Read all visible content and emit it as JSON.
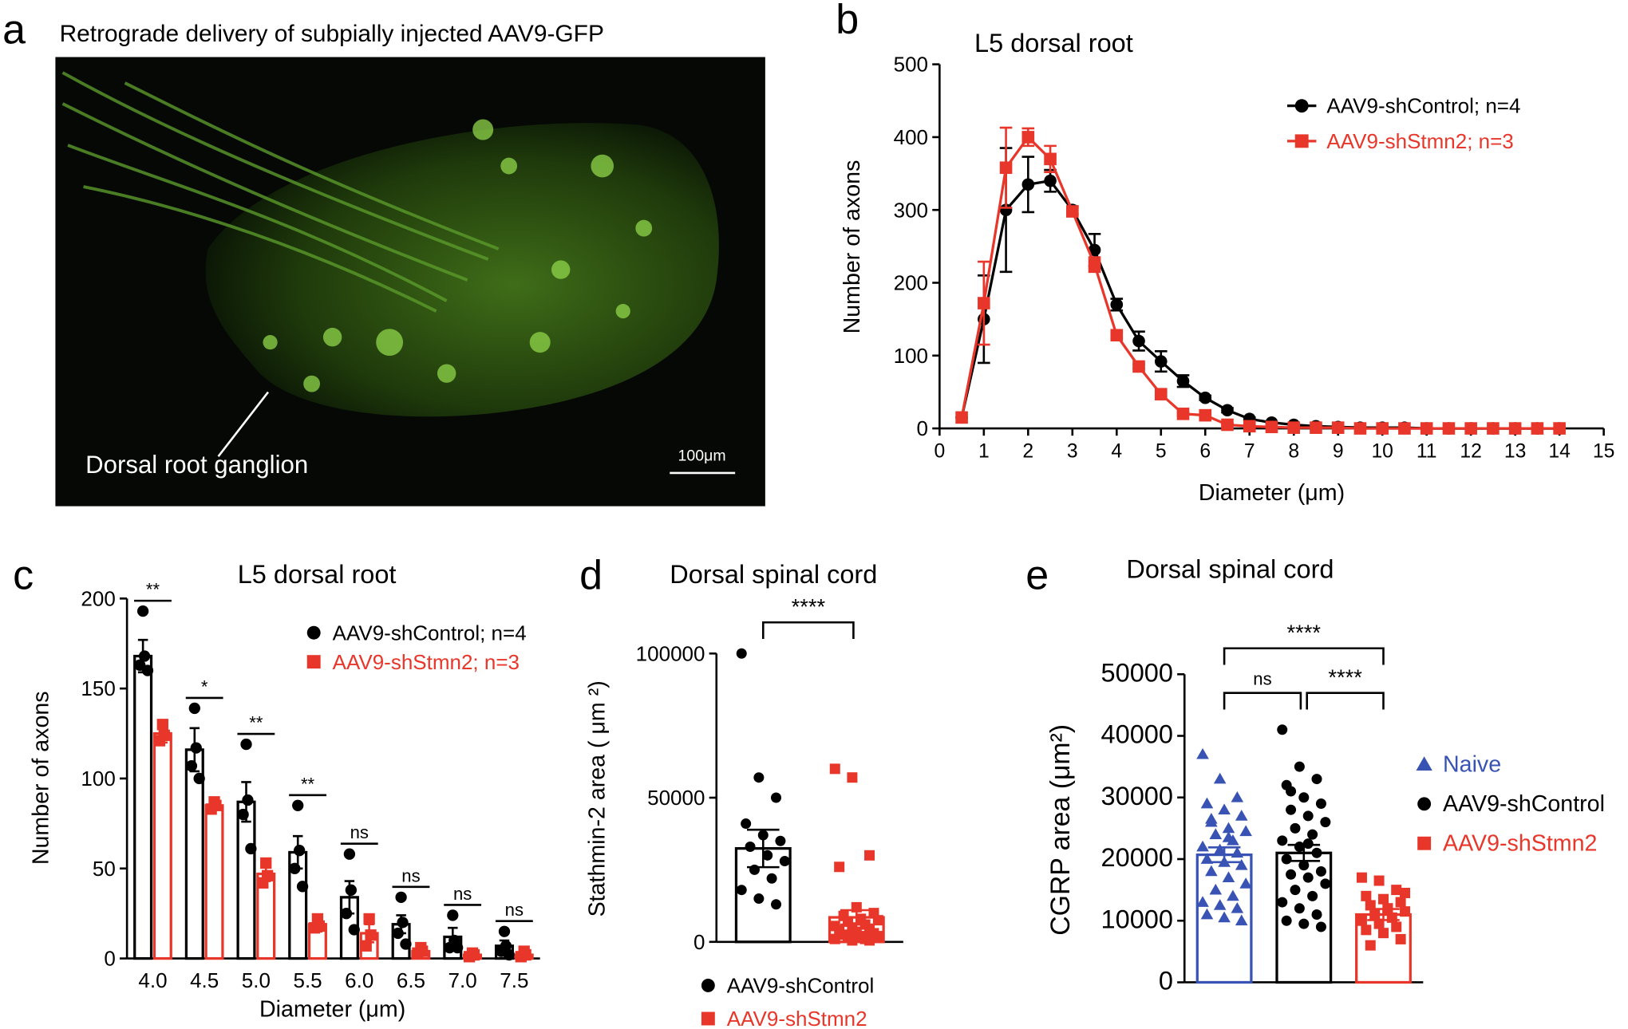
{
  "panel_a": {
    "label": "a",
    "title": "Retrograde delivery of subpially injected AAV9-GFP",
    "annotation": "Dorsal root ganglion",
    "scale_bar": "100μm"
  },
  "chart_data": [
    {
      "type": "line",
      "panel_label": "b",
      "title": "L5 dorsal root",
      "x_label": "Diameter (μm)",
      "y_label": "Number of axons",
      "x": [
        0.5,
        1,
        1.5,
        2,
        2.5,
        3,
        3.5,
        4,
        4.5,
        5,
        5.5,
        6,
        6.5,
        7,
        7.5,
        8,
        8.5,
        9,
        9.5,
        10,
        10.5,
        11,
        11.5,
        12,
        12.5,
        13,
        13.5,
        14
      ],
      "series": [
        {
          "name": "AAV9-shControl; n=4",
          "color": "#000000",
          "marker": "circle",
          "values": [
            15,
            150,
            300,
            335,
            340,
            300,
            245,
            170,
            120,
            92,
            65,
            42,
            25,
            13,
            8,
            5,
            3,
            2,
            1,
            1,
            1,
            0,
            0,
            0,
            0,
            0,
            0,
            0
          ],
          "errors": [
            0,
            60,
            85,
            38,
            15,
            5,
            22,
            8,
            13,
            14,
            8,
            3,
            3,
            2,
            1,
            1,
            1,
            0,
            0,
            0,
            0,
            0,
            0,
            0,
            0,
            0,
            0,
            0
          ]
        },
        {
          "name": "AAV9-shStmn2; n=3",
          "color": "#e8372a",
          "marker": "square",
          "values": [
            15,
            172,
            358,
            400,
            370,
            298,
            225,
            128,
            85,
            47,
            20,
            18,
            5,
            3,
            2,
            1,
            1,
            1,
            0,
            0,
            0,
            0,
            0,
            0,
            0,
            0,
            0,
            0
          ],
          "errors": [
            0,
            57,
            55,
            12,
            18,
            5,
            10,
            4,
            3,
            3,
            2,
            2,
            1,
            1,
            0,
            0,
            0,
            0,
            0,
            0,
            0,
            0,
            0,
            0,
            0,
            0,
            0,
            0
          ]
        }
      ],
      "xlim": [
        0,
        15
      ],
      "xticks": [
        0,
        1,
        2,
        3,
        4,
        5,
        6,
        7,
        8,
        9,
        10,
        11,
        12,
        13,
        14,
        15
      ],
      "ylim": [
        0,
        500
      ],
      "yticks": [
        0,
        100,
        200,
        300,
        400,
        500
      ],
      "legend": "upper right"
    },
    {
      "type": "bar",
      "panel_label": "c",
      "title": "L5 dorsal root",
      "x_label": "Diameter (μm)",
      "y_label": "Number of axons",
      "categories": [
        "4.0",
        "4.5",
        "5.0",
        "5.5",
        "6.0",
        "6.5",
        "7.0",
        "7.5"
      ],
      "series": [
        {
          "name": "AAV9-shControl; n=4",
          "color": "#000000",
          "marker": "circle",
          "values": [
            168,
            116,
            87,
            59,
            34,
            19,
            12,
            7
          ],
          "errors": [
            9,
            12,
            11,
            9,
            9,
            5,
            5,
            3
          ],
          "points": [
            [
              193,
              168,
              163,
              160
            ],
            [
              139,
              117,
              107,
              100
            ],
            [
              119,
              88,
              80,
              61
            ],
            [
              85,
              60,
              50,
              40
            ],
            [
              58,
              38,
              25,
              16
            ],
            [
              34,
              20,
              14,
              8
            ],
            [
              24,
              10,
              6,
              6
            ],
            [
              15,
              7,
              4,
              2
            ]
          ]
        },
        {
          "name": "AAV9-shStmn2; n=3",
          "color": "#e8372a",
          "marker": "square",
          "values": [
            125,
            85,
            47,
            19,
            14,
            4,
            2,
            2
          ],
          "errors": [
            5,
            2,
            4,
            4,
            5,
            1,
            1,
            1
          ],
          "points": [
            [
              130,
              124,
              121
            ],
            [
              87,
              85,
              83
            ],
            [
              53,
              46,
              42
            ],
            [
              22,
              18,
              17
            ],
            [
              22,
              13,
              7
            ],
            [
              6,
              4,
              3
            ],
            [
              3,
              2,
              1
            ],
            [
              4,
              2,
              1
            ]
          ]
        }
      ],
      "significance": [
        "**",
        "*",
        "**",
        "**",
        "ns",
        "ns",
        "ns",
        "ns"
      ],
      "ylim": [
        0,
        200
      ],
      "yticks": [
        0,
        50,
        100,
        150,
        200
      ],
      "legend": "upper right"
    },
    {
      "type": "bar",
      "panel_label": "d",
      "title": "Dorsal spinal cord",
      "y_label": "Stathmin-2 area ( μm ²)",
      "series": [
        {
          "name": "AAV9-shControl",
          "color": "#000000",
          "marker": "circle",
          "values": [
            32400
          ],
          "errors": [
            6500
          ],
          "points": [
            [
              100000,
              57000,
              50000,
              41000,
              37000,
              35000,
              33000,
              30000,
              28000,
              25000,
              22000,
              18000,
              15000,
              13000
            ]
          ]
        },
        {
          "name": "AAV9-shStmn2",
          "color": "#e8372a",
          "marker": "square",
          "values": [
            8500
          ],
          "errors": [
            2500
          ],
          "points": [
            [
              60000,
              57000,
              30000,
              26000,
              12000,
              10000,
              9000,
              8000,
              7500,
              7000,
              6000,
              5500,
              5000,
              4500,
              4000,
              3500,
              3000,
              2500,
              2000,
              2000,
              1500,
              1000,
              1000,
              500,
              500
            ]
          ]
        }
      ],
      "significance": [
        "****"
      ],
      "ylim": [
        0,
        100000
      ],
      "yticks": [
        0,
        50000,
        100000
      ],
      "legend": "bottom"
    },
    {
      "type": "bar",
      "panel_label": "e",
      "title": "Dorsal spinal cord",
      "y_label": "CGRP area (μm²)",
      "series": [
        {
          "name": "Naive",
          "color": "#3953b4",
          "marker": "triangle",
          "values": [
            20700
          ],
          "errors": [
            1200
          ],
          "points": [
            [
              37000,
              33000,
              30000,
              29000,
              28000,
              27000,
              26000,
              25000,
              24500,
              24000,
              23000,
              22000,
              21500,
              21000,
              20000,
              19500,
              19000,
              18000,
              17000,
              16000,
              15000,
              14000,
              13000,
              12500,
              12000,
              11000,
              10500,
              10000,
              26500,
              23500
            ]
          ]
        },
        {
          "name": "AAV9-shControl",
          "color": "#000000",
          "marker": "circle",
          "values": [
            21000
          ],
          "errors": [
            1300
          ],
          "points": [
            [
              41000,
              35000,
              33000,
              32000,
              30000,
              29000,
              28000,
              27000,
              26000,
              25000,
              24000,
              23000,
              22000,
              21000,
              20000,
              19000,
              18000,
              17500,
              17000,
              16000,
              15000,
              14000,
              13000,
              12000,
              11000,
              10000,
              9500,
              9000,
              31000,
              22500
            ]
          ]
        },
        {
          "name": "AAV9-shStmn2",
          "color": "#e8372a",
          "marker": "square",
          "values": [
            11000
          ],
          "errors": [
            900
          ],
          "points": [
            [
              17000,
              16500,
              15000,
              14000,
              13500,
              13000,
              12500,
              12000,
              11500,
              11000,
              10500,
              10000,
              9500,
              9000,
              8500,
              8000,
              7000,
              6000,
              12000,
              14500
            ]
          ]
        }
      ],
      "significance": [
        "ns",
        "****",
        "****"
      ],
      "ylim": [
        0,
        50000
      ],
      "yticks": [
        0,
        10000,
        20000,
        30000,
        40000,
        50000
      ],
      "legend": "right"
    }
  ]
}
